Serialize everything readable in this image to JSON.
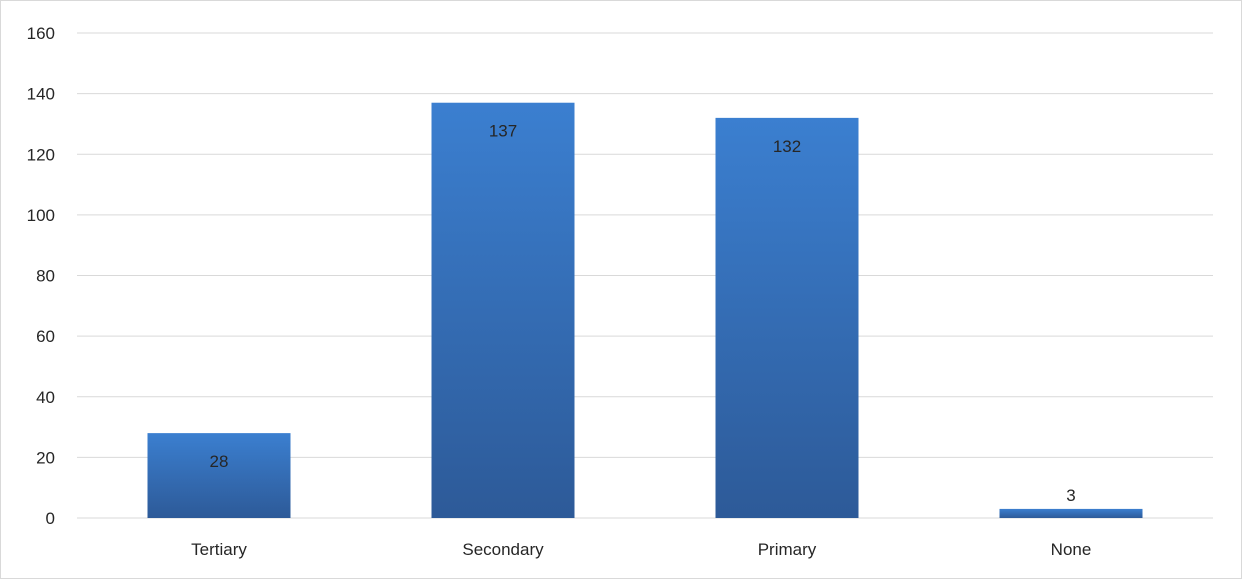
{
  "chart_data": {
    "type": "bar",
    "title": "",
    "xlabel": "",
    "ylabel": "",
    "categories": [
      "Tertiary",
      "Secondary",
      "Primary",
      "None"
    ],
    "values": [
      28,
      137,
      132,
      3
    ],
    "data_labels": [
      "28",
      "137",
      "132",
      "3"
    ],
    "ylim": [
      0,
      160
    ],
    "yticks": [
      0,
      20,
      40,
      60,
      80,
      100,
      120,
      140,
      160
    ],
    "grid": true,
    "legend": "none",
    "bar_color_top": "#3b7fd0",
    "bar_color_bottom": "#2d5a98",
    "grid_color": "#d9d9d9"
  }
}
